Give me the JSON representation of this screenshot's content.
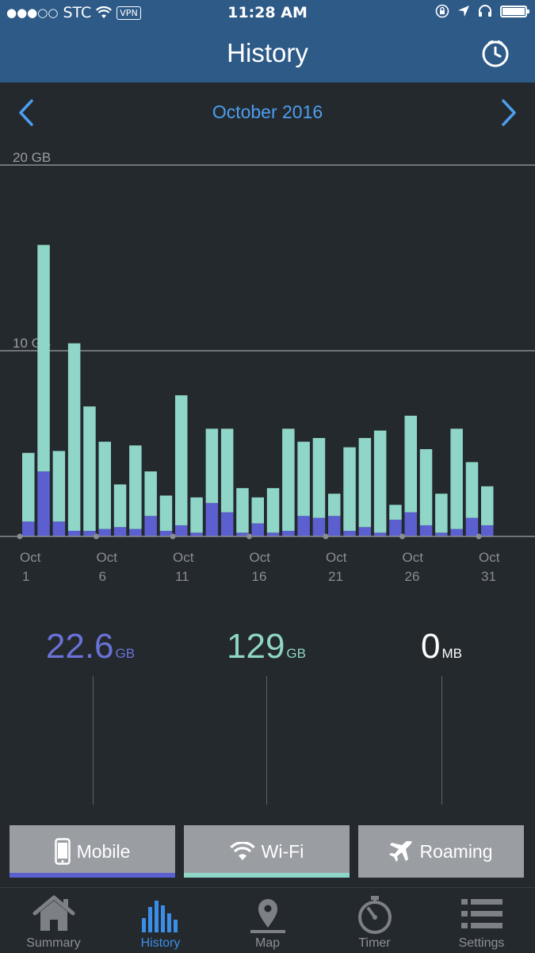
{
  "status_bar": {
    "carrier": "STC",
    "vpn": "VPN",
    "time": "11:28 AM",
    "signal_icon": "signal-dots-icon",
    "wifi_icon": "wifi-icon"
  },
  "nav": {
    "title": "History",
    "right_icon": "clock-icon"
  },
  "month_selector": {
    "label": "October 2016",
    "prev_icon": "chevron-left-icon",
    "next_icon": "chevron-right-icon",
    "accent_color": "#4d9ef0"
  },
  "chart_data": {
    "type": "bar",
    "stacked": true,
    "title": "",
    "xlabel": "",
    "ylabel": "",
    "ylim": [
      0,
      20
    ],
    "yticks": [
      "20 GB",
      "10 GB"
    ],
    "ytick_values": [
      20,
      10
    ],
    "categories": [
      "1",
      "2",
      "3",
      "4",
      "5",
      "6",
      "7",
      "8",
      "9",
      "10",
      "11",
      "12",
      "13",
      "14",
      "15",
      "16",
      "17",
      "18",
      "19",
      "20",
      "21",
      "22",
      "23",
      "24",
      "25",
      "26",
      "27",
      "28",
      "29",
      "30",
      "31"
    ],
    "xtick_labels": [
      {
        "line1": "Oct",
        "line2": "1",
        "day": 1
      },
      {
        "line1": "Oct",
        "line2": "6",
        "day": 6
      },
      {
        "line1": "Oct",
        "line2": "11",
        "day": 11
      },
      {
        "line1": "Oct",
        "line2": "16",
        "day": 16
      },
      {
        "line1": "Oct",
        "line2": "21",
        "day": 21
      },
      {
        "line1": "Oct",
        "line2": "26",
        "day": 26
      },
      {
        "line1": "Oct",
        "line2": "31",
        "day": 31
      }
    ],
    "series": [
      {
        "color": "#5b5fcf",
        "values": [
          0.8,
          3.5,
          0.8,
          0.3,
          0.3,
          0.4,
          0.5,
          0.4,
          1.1,
          0.3,
          0.6,
          0.2,
          1.8,
          1.3,
          0.2,
          0.7,
          0.2,
          0.3,
          1.1,
          1.0,
          1.1,
          0.3,
          0.5,
          0.2,
          0.9,
          1.3,
          0.6,
          0.2,
          0.4,
          1.0,
          0.6
        ]
      },
      {
        "color": "#8fd5c8",
        "values": [
          3.7,
          12.2,
          3.8,
          10.1,
          6.7,
          4.7,
          2.3,
          4.5,
          2.4,
          1.9,
          7.0,
          1.9,
          4.0,
          4.5,
          2.4,
          1.4,
          2.4,
          5.5,
          4.0,
          4.3,
          1.2,
          4.5,
          4.8,
          5.5,
          0.8,
          5.2,
          4.1,
          2.1,
          5.4,
          3.0,
          2.1
        ]
      }
    ]
  },
  "totals": {
    "mobile": {
      "value": "22.6",
      "unit": "GB",
      "color": "#6a72d8"
    },
    "wifi": {
      "value": "129",
      "unit": "GB",
      "color": "#8fd5c8"
    },
    "roaming": {
      "value": "0",
      "unit": "MB",
      "color": "#ffffff"
    }
  },
  "filters": [
    {
      "label": "Mobile",
      "icon": "phone-icon",
      "underline": "#5b5fcf"
    },
    {
      "label": "Wi-Fi",
      "icon": "wifi-icon",
      "underline": "#8fd5c8"
    },
    {
      "label": "Roaming",
      "icon": "airplane-icon",
      "underline": ""
    }
  ],
  "tabs": [
    {
      "label": "Summary",
      "icon": "house-icon",
      "active": false
    },
    {
      "label": "History",
      "icon": "bar-chart-icon",
      "active": true
    },
    {
      "label": "Map",
      "icon": "map-pin-icon",
      "active": false
    },
    {
      "label": "Timer",
      "icon": "stopwatch-icon",
      "active": false
    },
    {
      "label": "Settings",
      "icon": "list-icon",
      "active": false
    }
  ]
}
